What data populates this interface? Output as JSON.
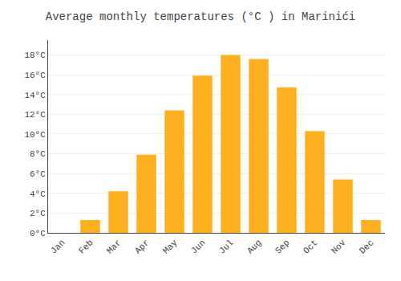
{
  "chart_data": {
    "type": "bar",
    "title": "Average monthly temperatures (°C ) in Marinići",
    "categories": [
      "Jan",
      "Feb",
      "Mar",
      "Apr",
      "May",
      "Jun",
      "Jul",
      "Aug",
      "Sep",
      "Oct",
      "Nov",
      "Dec"
    ],
    "values": [
      0.0,
      1.3,
      4.2,
      7.9,
      12.4,
      15.9,
      18.0,
      17.6,
      14.7,
      10.3,
      5.4,
      1.3
    ],
    "color": "#FFB020",
    "ylim": [
      0,
      19.5
    ],
    "yticks": [
      {
        "value": 0,
        "label": "0°C"
      },
      {
        "value": 2,
        "label": "2°C"
      },
      {
        "value": 4,
        "label": "4°C"
      },
      {
        "value": 6,
        "label": "6°C"
      },
      {
        "value": 8,
        "label": "8°C"
      },
      {
        "value": 10,
        "label": "10°C"
      },
      {
        "value": 12,
        "label": "12°C"
      },
      {
        "value": 14,
        "label": "14°C"
      },
      {
        "value": 16,
        "label": "16°C"
      },
      {
        "value": 18,
        "label": "18°C"
      }
    ],
    "grid": true
  }
}
